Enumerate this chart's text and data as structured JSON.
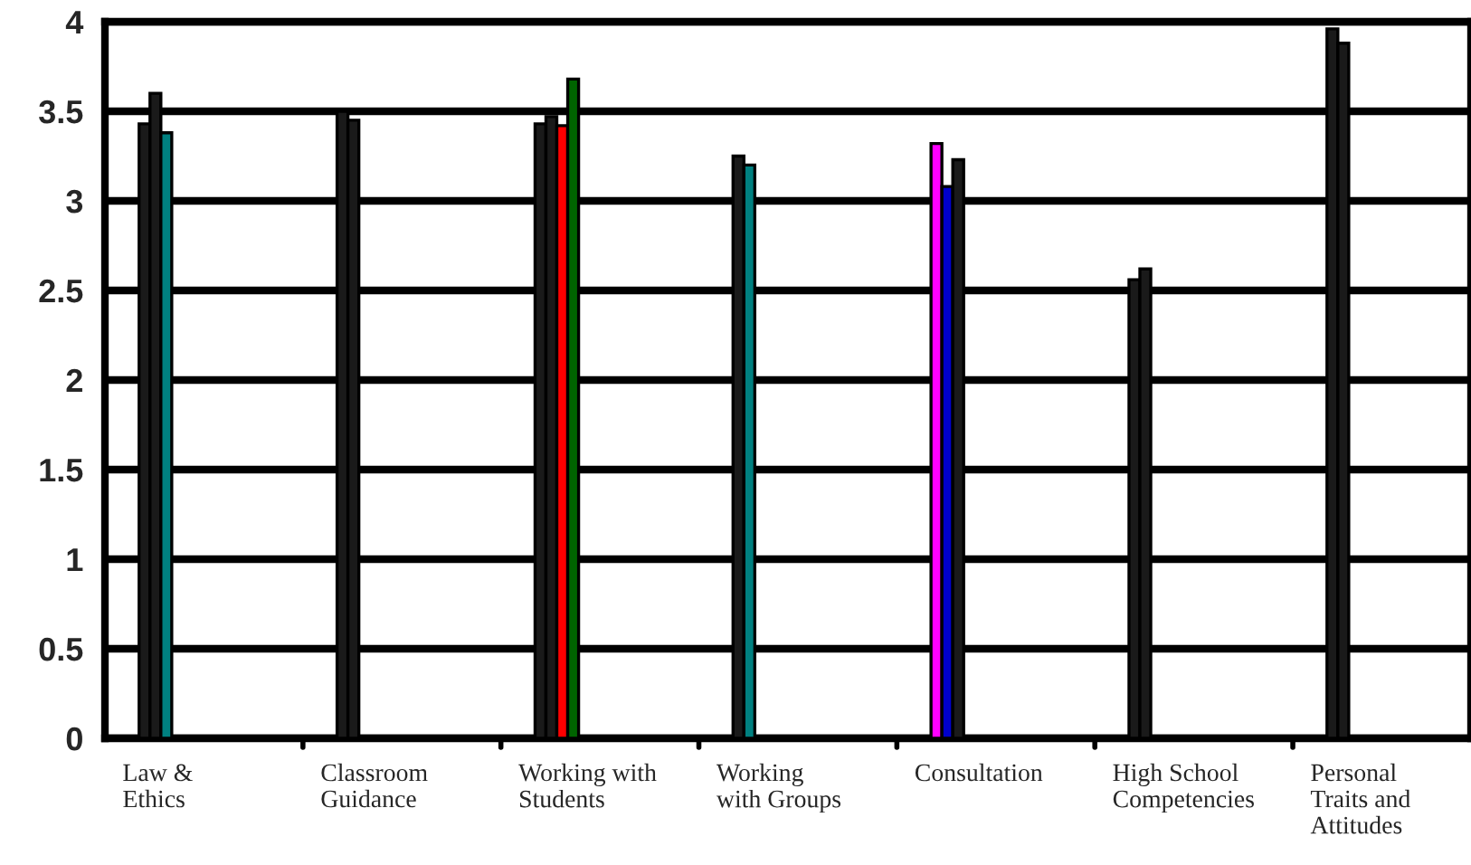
{
  "chart_data": {
    "type": "bar",
    "categories": [
      "Law &\nEthics",
      "Classroom\nGuidance",
      "Working with\nStudents",
      "Working\nwith Groups",
      "Consultation",
      "High School\nCompetencies",
      "Personal\nTraits and\nAttitudes"
    ],
    "series": [
      {
        "colors": [
          "#1a1a1a",
          "#1a1a1a",
          "#1a1a1a",
          "#1a1a1a",
          "#ff00ff",
          "#1a1a1a",
          "#1a1a1a"
        ],
        "values": [
          3.43,
          3.5,
          3.43,
          3.25,
          3.32,
          2.56,
          3.96
        ]
      },
      {
        "colors": [
          "#1a1a1a",
          "#1a1a1a",
          "#1a1a1a",
          "#008080",
          "#0000cc",
          "#1a1a1a",
          "#1a1a1a"
        ],
        "values": [
          3.6,
          3.45,
          3.47,
          3.2,
          3.08,
          2.62,
          3.88
        ]
      },
      {
        "colors": [
          "#008080",
          null,
          "#ff0000",
          null,
          "#1a1a1a",
          null,
          null
        ],
        "values": [
          3.38,
          null,
          3.42,
          null,
          3.23,
          null,
          null
        ]
      },
      {
        "colors": [
          null,
          null,
          "#006400",
          null,
          null,
          null,
          null
        ],
        "values": [
          null,
          null,
          3.68,
          null,
          null,
          null,
          null
        ]
      }
    ],
    "ylim": [
      0,
      4
    ],
    "yticks": [
      0,
      0.5,
      1,
      1.5,
      2,
      2.5,
      3,
      3.5,
      4
    ],
    "grid": "y",
    "legend": false
  }
}
